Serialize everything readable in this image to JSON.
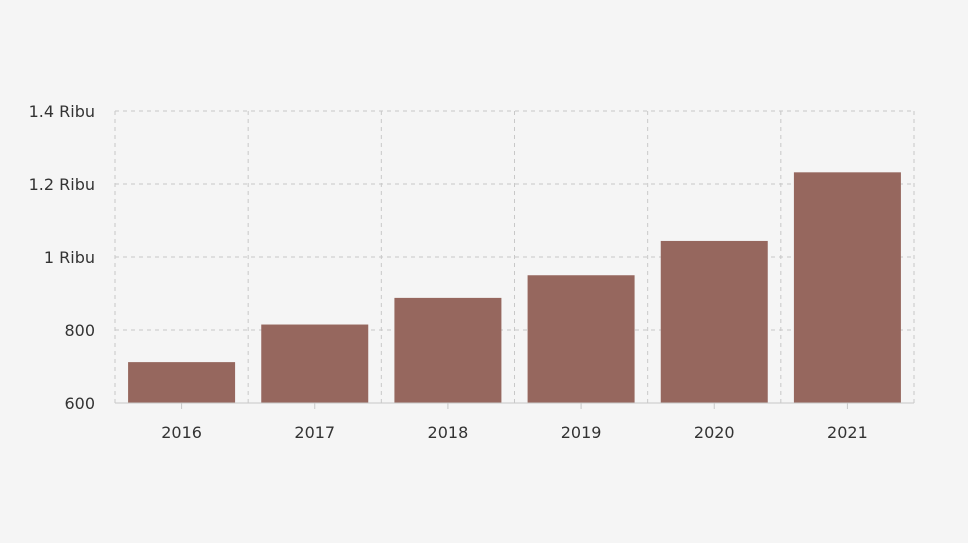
{
  "chart_data": {
    "type": "bar",
    "categories": [
      "2016",
      "2017",
      "2018",
      "2019",
      "2020",
      "2021"
    ],
    "values": [
      712,
      815,
      888,
      950,
      1044,
      1232
    ],
    "ylim": [
      600,
      1400
    ],
    "y_ticks": [
      {
        "value": 600,
        "label": "600"
      },
      {
        "value": 800,
        "label": "800"
      },
      {
        "value": 1000,
        "label": "1 Ribu"
      },
      {
        "value": 1200,
        "label": "1.2 Ribu"
      },
      {
        "value": 1400,
        "label": "1.4 Ribu"
      }
    ],
    "grid": true,
    "bar_color": "#96675e",
    "background_color": "#f5f5f5"
  }
}
